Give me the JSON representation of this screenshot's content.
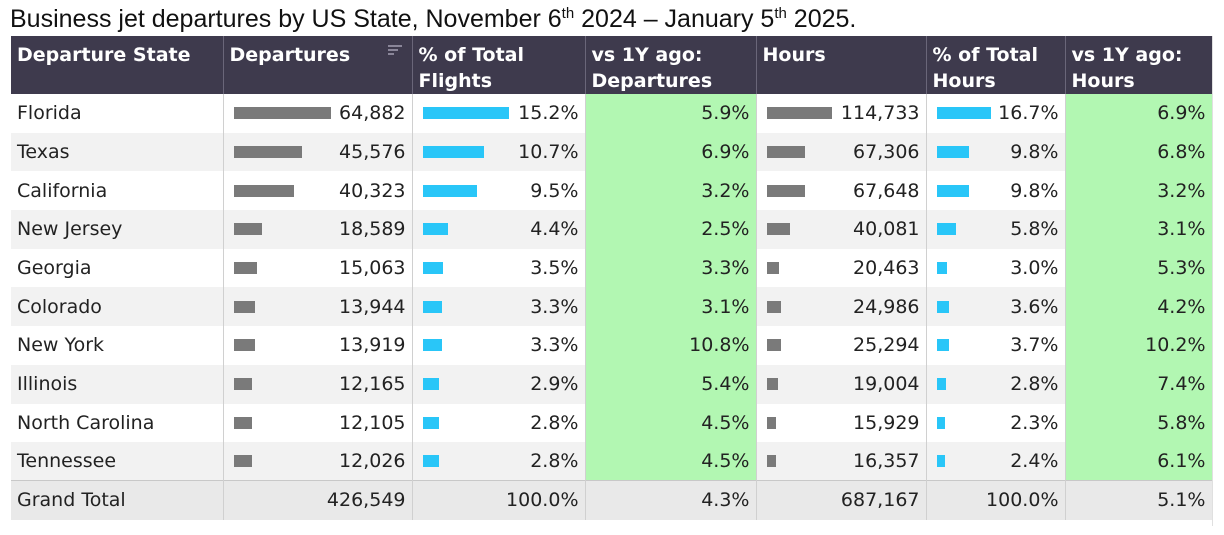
{
  "title": {
    "part1": "Business jet departures by US State, November 6",
    "sup1": "th",
    "part2": " 2024 – January 5",
    "sup2": "th",
    "part3": " 2025."
  },
  "chart_data": {
    "type": "table",
    "columns": [
      "Departure State",
      "Departures",
      "% of Total Flights",
      "vs 1Y ago: Departures",
      "Hours",
      "% of Total Hours",
      "vs 1Y ago: Hours"
    ],
    "header_lines": [
      [
        "Departure State",
        ""
      ],
      [
        "Departures",
        ""
      ],
      [
        "% of Total",
        "Flights"
      ],
      [
        "vs 1Y ago:",
        "Departures"
      ],
      [
        "Hours",
        ""
      ],
      [
        "% of Total",
        "Hours"
      ],
      [
        "vs 1Y ago:",
        "Hours"
      ]
    ],
    "rows": [
      {
        "state": "Florida",
        "departures": "64,882",
        "pct_flights": "15.2%",
        "vs_dep": "5.9%",
        "hours": "114,733",
        "pct_hours": "16.7%",
        "vs_hours": "6.9%"
      },
      {
        "state": "Texas",
        "departures": "45,576",
        "pct_flights": "10.7%",
        "vs_dep": "6.9%",
        "hours": "67,306",
        "pct_hours": "9.8%",
        "vs_hours": "6.8%"
      },
      {
        "state": "California",
        "departures": "40,323",
        "pct_flights": "9.5%",
        "vs_dep": "3.2%",
        "hours": "67,648",
        "pct_hours": "9.8%",
        "vs_hours": "3.2%"
      },
      {
        "state": "New Jersey",
        "departures": "18,589",
        "pct_flights": "4.4%",
        "vs_dep": "2.5%",
        "hours": "40,081",
        "pct_hours": "5.8%",
        "vs_hours": "3.1%"
      },
      {
        "state": "Georgia",
        "departures": "15,063",
        "pct_flights": "3.5%",
        "vs_dep": "3.3%",
        "hours": "20,463",
        "pct_hours": "3.0%",
        "vs_hours": "5.3%"
      },
      {
        "state": "Colorado",
        "departures": "13,944",
        "pct_flights": "3.3%",
        "vs_dep": "3.1%",
        "hours": "24,986",
        "pct_hours": "3.6%",
        "vs_hours": "4.2%"
      },
      {
        "state": "New York",
        "departures": "13,919",
        "pct_flights": "3.3%",
        "vs_dep": "10.8%",
        "hours": "25,294",
        "pct_hours": "3.7%",
        "vs_hours": "10.2%"
      },
      {
        "state": "Illinois",
        "departures": "12,165",
        "pct_flights": "2.9%",
        "vs_dep": "5.4%",
        "hours": "19,004",
        "pct_hours": "2.8%",
        "vs_hours": "7.4%"
      },
      {
        "state": "North Carolina",
        "departures": "12,105",
        "pct_flights": "2.8%",
        "vs_dep": "4.5%",
        "hours": "15,929",
        "pct_hours": "2.3%",
        "vs_hours": "5.8%"
      },
      {
        "state": "Tennessee",
        "departures": "12,026",
        "pct_flights": "2.8%",
        "vs_dep": "4.5%",
        "hours": "16,357",
        "pct_hours": "2.4%",
        "vs_hours": "6.1%"
      }
    ],
    "total": {
      "state": "Grand Total",
      "departures": "426,549",
      "pct_flights": "100.0%",
      "vs_dep": "4.3%",
      "hours": "687,167",
      "pct_hours": "100.0%",
      "vs_hours": "5.1%"
    }
  },
  "colors": {
    "header_bg": "#3e3a4d",
    "gray_bar": "#7a7a7a",
    "blue_bar": "#29c6f8",
    "green_cell": "#b2f7b2"
  },
  "icons": {
    "sort": "sort-descending-icon"
  }
}
